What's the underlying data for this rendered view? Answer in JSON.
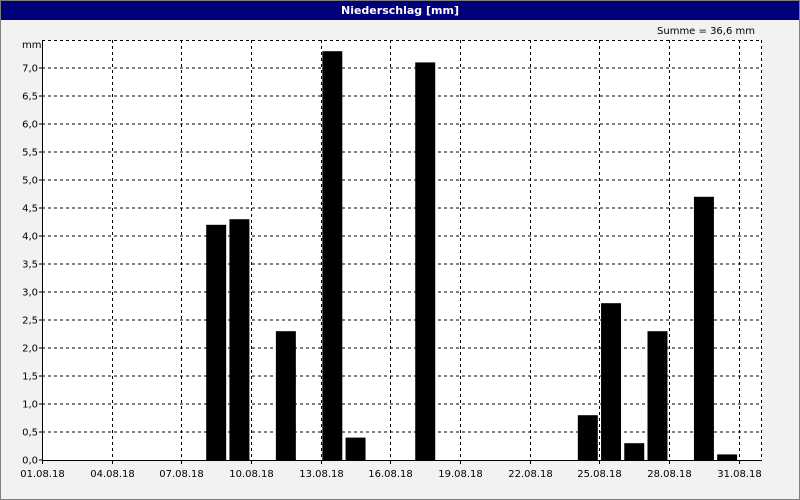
{
  "chart_data": {
    "type": "bar",
    "title": "Niederschlag [mm]",
    "ylabel": "mm",
    "xlabel": "",
    "annotation": "Summe = 36,6 mm",
    "ylim": [
      0,
      7.5
    ],
    "xlim_days": [
      1,
      32
    ],
    "grid": true,
    "y_ticks": [
      "0,0",
      "0,5",
      "1,0",
      "1,5",
      "2,0",
      "2,5",
      "3,0",
      "3,5",
      "4,0",
      "4,5",
      "5,0",
      "5,5",
      "6,0",
      "6,5",
      "7,0"
    ],
    "x_ticks": [
      {
        "day": 1,
        "label": "01.08.18"
      },
      {
        "day": 4,
        "label": "04.08.18"
      },
      {
        "day": 7,
        "label": "07.08.18"
      },
      {
        "day": 10,
        "label": "10.08.18"
      },
      {
        "day": 13,
        "label": "13.08.18"
      },
      {
        "day": 16,
        "label": "16.08.18"
      },
      {
        "day": 19,
        "label": "19.08.18"
      },
      {
        "day": 22,
        "label": "22.08.18"
      },
      {
        "day": 25,
        "label": "25.08.18"
      },
      {
        "day": 28,
        "label": "28.08.18"
      },
      {
        "day": 31,
        "label": "31.08.18"
      }
    ],
    "bar_color": "#000000",
    "bars": [
      {
        "date": "09.08.18",
        "day": 9,
        "value": 4.2
      },
      {
        "date": "10.08.18",
        "day": 10,
        "value": 4.3
      },
      {
        "date": "12.08.18",
        "day": 12,
        "value": 2.3
      },
      {
        "date": "14.08.18",
        "day": 14,
        "value": 7.3
      },
      {
        "date": "15.08.18",
        "day": 15,
        "value": 0.4
      },
      {
        "date": "18.08.18",
        "day": 18,
        "value": 7.1
      },
      {
        "date": "25.08.18",
        "day": 25,
        "value": 0.8
      },
      {
        "date": "26.08.18",
        "day": 26,
        "value": 2.8
      },
      {
        "date": "27.08.18",
        "day": 27,
        "value": 0.3
      },
      {
        "date": "28.08.18",
        "day": 28,
        "value": 2.3
      },
      {
        "date": "30.08.18",
        "day": 30,
        "value": 4.7
      },
      {
        "date": "31.08.18",
        "day": 31,
        "value": 0.1
      }
    ]
  }
}
